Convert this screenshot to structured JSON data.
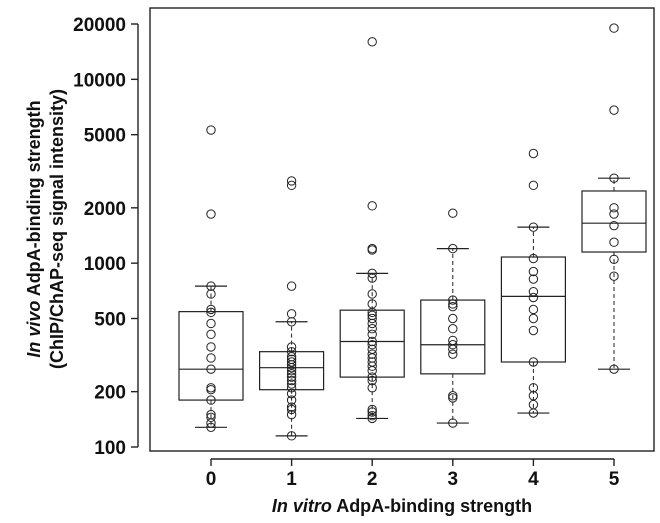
{
  "chart_data": {
    "type": "boxplot",
    "xlabel_italic": "In vitro",
    "xlabel_rest": " AdpA-binding strength",
    "ylabel_line1_italic": "In vivo",
    "ylabel_line1_rest": " AdpA-binding strength",
    "ylabel_line2": "(ChIP/ChAP-seq signal intensity)",
    "y_scale": "log",
    "ylim": [
      100,
      20000
    ],
    "y_ticks": [
      100,
      200,
      500,
      1000,
      2000,
      5000,
      10000,
      20000
    ],
    "y_tick_labels": [
      "100",
      "200",
      "500",
      "1000",
      "2000",
      "5000",
      "10000",
      "20000"
    ],
    "categories": [
      "0",
      "1",
      "2",
      "3",
      "4",
      "5"
    ],
    "grid": false,
    "boxes": [
      {
        "q1": 180,
        "median": 265,
        "q3": 545,
        "whisker_low": 128,
        "whisker_high": 750,
        "points": [
          5300,
          1850,
          750,
          680,
          560,
          540,
          470,
          410,
          350,
          305,
          265,
          210,
          205,
          180,
          150,
          145,
          135,
          128
        ]
      },
      {
        "q1": 205,
        "median": 270,
        "q3": 330,
        "whisker_low": 115,
        "whisker_high": 480,
        "points": [
          2800,
          2650,
          750,
          530,
          480,
          350,
          330,
          310,
          300,
          290,
          280,
          270,
          260,
          250,
          240,
          230,
          220,
          210,
          195,
          180,
          165,
          160,
          150,
          115
        ]
      },
      {
        "q1": 240,
        "median": 375,
        "q3": 555,
        "whisker_low": 143,
        "whisker_high": 880,
        "points": [
          16000,
          2050,
          1200,
          1180,
          880,
          830,
          680,
          600,
          540,
          520,
          500,
          470,
          440,
          410,
          375,
          360,
          340,
          320,
          305,
          290,
          275,
          260,
          240,
          230,
          210,
          160,
          155,
          148,
          143
        ]
      },
      {
        "q1": 250,
        "median": 360,
        "q3": 630,
        "whisker_low": 135,
        "whisker_high": 1200,
        "points": [
          1870,
          1200,
          630,
          600,
          580,
          500,
          440,
          380,
          360,
          340,
          320,
          190,
          185,
          135
        ]
      },
      {
        "q1": 290,
        "median": 660,
        "q3": 1080,
        "whisker_low": 153,
        "whisker_high": 1570,
        "points": [
          3950,
          2650,
          1570,
          1060,
          900,
          820,
          700,
          650,
          560,
          500,
          430,
          290,
          210,
          190,
          170,
          153
        ]
      },
      {
        "q1": 1150,
        "median": 1650,
        "q3": 2470,
        "whisker_low": 265,
        "whisker_high": 2900,
        "points": [
          19000,
          6800,
          2900,
          2000,
          1850,
          1600,
          1300,
          1050,
          850,
          265
        ]
      }
    ]
  }
}
